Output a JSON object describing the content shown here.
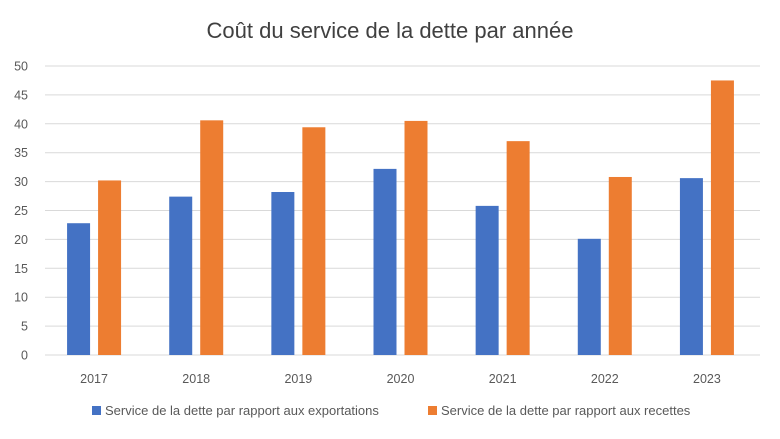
{
  "chart_data": {
    "type": "bar",
    "title": "Coût du service de la dette par année",
    "categories": [
      "2017",
      "2018",
      "2019",
      "2020",
      "2021",
      "2022",
      "2023"
    ],
    "series": [
      {
        "name": "Service de la dette par rapport aux exportations",
        "color": "#4472C4",
        "values": [
          22.8,
          27.4,
          28.2,
          32.2,
          25.8,
          20.1,
          30.6
        ]
      },
      {
        "name": "Service de la dette par rapport aux recettes",
        "color": "#ED7D31",
        "values": [
          30.2,
          40.6,
          39.4,
          40.5,
          37.0,
          30.8,
          47.5
        ]
      }
    ],
    "ylim": [
      0,
      50
    ],
    "yticks": [
      "0",
      "5",
      "10",
      "15",
      "20",
      "25",
      "30",
      "35",
      "40",
      "45",
      "50"
    ],
    "xlabel": "",
    "ylabel": "",
    "grid": true,
    "legend_position": "bottom"
  }
}
